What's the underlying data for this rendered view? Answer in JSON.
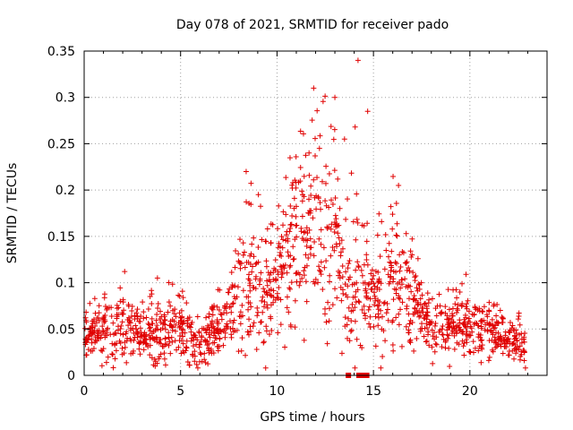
{
  "chart_data": {
    "type": "scatter",
    "title": "Day 078 of 2021, SRMTID for receiver pado",
    "xlabel": "GPS time / hours",
    "ylabel": "SRMTID / TECUs",
    "xlim": [
      0,
      24
    ],
    "ylim": [
      0,
      0.35
    ],
    "x_ticks": [
      0,
      5,
      10,
      15,
      20
    ],
    "x_tick_labels": [
      "0",
      "5",
      "10",
      "15",
      "20"
    ],
    "y_ticks": [
      0,
      0.05,
      0.1,
      0.15,
      0.2,
      0.25,
      0.3,
      0.35
    ],
    "y_tick_labels": [
      "0",
      "0.05",
      "0.1",
      "0.15",
      "0.2",
      "0.25",
      "0.3",
      "0.35"
    ],
    "grid": true,
    "marker": "+",
    "color": "#e00000",
    "time_range_hours": [
      0,
      22.9
    ],
    "envelope": {
      "x": [
        0,
        1,
        2,
        3,
        4,
        5,
        6,
        7,
        7.5,
        8,
        8.5,
        9,
        9.5,
        10,
        10.5,
        11,
        11.5,
        12,
        12.5,
        13,
        13.5,
        14,
        14.5,
        15,
        15.5,
        16,
        16.5,
        17,
        17.5,
        18,
        19,
        20,
        21,
        22,
        22.9
      ],
      "median": [
        0.042,
        0.047,
        0.05,
        0.044,
        0.043,
        0.05,
        0.035,
        0.05,
        0.06,
        0.085,
        0.11,
        0.1,
        0.085,
        0.1,
        0.125,
        0.14,
        0.155,
        0.165,
        0.16,
        0.15,
        0.08,
        0.1,
        0.085,
        0.085,
        0.09,
        0.1,
        0.11,
        0.08,
        0.065,
        0.05,
        0.05,
        0.055,
        0.045,
        0.04,
        0.035
      ],
      "spread": [
        0.015,
        0.02,
        0.025,
        0.02,
        0.025,
        0.025,
        0.018,
        0.02,
        0.025,
        0.05,
        0.06,
        0.05,
        0.035,
        0.045,
        0.05,
        0.06,
        0.07,
        0.08,
        0.07,
        0.06,
        0.05,
        0.06,
        0.04,
        0.04,
        0.045,
        0.06,
        0.05,
        0.035,
        0.02,
        0.02,
        0.02,
        0.022,
        0.02,
        0.017,
        0.015
      ]
    },
    "highlight_points": [
      {
        "x": 11.9,
        "y": 0.31
      },
      {
        "x": 13.0,
        "y": 0.3
      },
      {
        "x": 14.2,
        "y": 0.34
      },
      {
        "x": 14.7,
        "y": 0.285
      },
      {
        "x": 13.5,
        "y": 0.255
      },
      {
        "x": 14.05,
        "y": 0.268
      },
      {
        "x": 8.4,
        "y": 0.22
      },
      {
        "x": 16.3,
        "y": 0.205
      },
      {
        "x": 12.2,
        "y": 0.245
      },
      {
        "x": 3.8,
        "y": 0.105
      },
      {
        "x": 2.1,
        "y": 0.112
      },
      {
        "x": 19.8,
        "y": 0.109
      },
      {
        "x": 17.0,
        "y": 0.13
      }
    ],
    "zero_markers_hours": [
      13.7,
      14.25,
      14.5,
      14.65
    ],
    "point_count": 1500
  }
}
